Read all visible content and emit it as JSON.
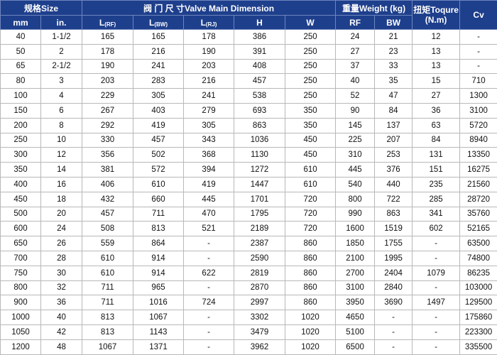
{
  "header": {
    "size": "规格Size",
    "dimension": "阀 门 尺 寸Valve Main Dimension",
    "weight": "重量Weight (kg)",
    "torque": "扭矩Toqure (N.m)",
    "cv": "Cv",
    "mm": "mm",
    "in": "in.",
    "l_rf": {
      "main": "L",
      "sub": "(RF)"
    },
    "l_bw": {
      "main": "L",
      "sub": "(BW)"
    },
    "l_rj": {
      "main": "L",
      "sub": "(RJ)"
    },
    "h": "H",
    "w": "W",
    "rf": "RF",
    "bw": "BW"
  },
  "colors": {
    "header_bg": "#1e3f8c",
    "header_text": "#ffffff"
  },
  "rows": [
    [
      "40",
      "1-1/2",
      "165",
      "165",
      "178",
      "386",
      "250",
      "24",
      "21",
      "12",
      "-"
    ],
    [
      "50",
      "2",
      "178",
      "216",
      "190",
      "391",
      "250",
      "27",
      "23",
      "13",
      "-"
    ],
    [
      "65",
      "2-1/2",
      "190",
      "241",
      "203",
      "408",
      "250",
      "37",
      "33",
      "13",
      "-"
    ],
    [
      "80",
      "3",
      "203",
      "283",
      "216",
      "457",
      "250",
      "40",
      "35",
      "15",
      "710"
    ],
    [
      "100",
      "4",
      "229",
      "305",
      "241",
      "538",
      "250",
      "52",
      "47",
      "27",
      "1300"
    ],
    [
      "150",
      "6",
      "267",
      "403",
      "279",
      "693",
      "350",
      "90",
      "84",
      "36",
      "3100"
    ],
    [
      "200",
      "8",
      "292",
      "419",
      "305",
      "863",
      "350",
      "145",
      "137",
      "63",
      "5720"
    ],
    [
      "250",
      "10",
      "330",
      "457",
      "343",
      "1036",
      "450",
      "225",
      "207",
      "84",
      "8940"
    ],
    [
      "300",
      "12",
      "356",
      "502",
      "368",
      "1130",
      "450",
      "310",
      "253",
      "131",
      "13350"
    ],
    [
      "350",
      "14",
      "381",
      "572",
      "394",
      "1272",
      "610",
      "445",
      "376",
      "151",
      "16275"
    ],
    [
      "400",
      "16",
      "406",
      "610",
      "419",
      "1447",
      "610",
      "540",
      "440",
      "235",
      "21560"
    ],
    [
      "450",
      "18",
      "432",
      "660",
      "445",
      "1701",
      "720",
      "800",
      "722",
      "285",
      "28720"
    ],
    [
      "500",
      "20",
      "457",
      "711",
      "470",
      "1795",
      "720",
      "990",
      "863",
      "341",
      "35760"
    ],
    [
      "600",
      "24",
      "508",
      "813",
      "521",
      "2189",
      "720",
      "1600",
      "1519",
      "602",
      "52165"
    ],
    [
      "650",
      "26",
      "559",
      "864",
      "-",
      "2387",
      "860",
      "1850",
      "1755",
      "-",
      "63500"
    ],
    [
      "700",
      "28",
      "610",
      "914",
      "-",
      "2590",
      "860",
      "2100",
      "1995",
      "-",
      "74800"
    ],
    [
      "750",
      "30",
      "610",
      "914",
      "622",
      "2819",
      "860",
      "2700",
      "2404",
      "1079",
      "86235"
    ],
    [
      "800",
      "32",
      "711",
      "965",
      "-",
      "2870",
      "860",
      "3100",
      "2840",
      "-",
      "103000"
    ],
    [
      "900",
      "36",
      "711",
      "1016",
      "724",
      "2997",
      "860",
      "3950",
      "3690",
      "1497",
      "129500"
    ],
    [
      "1000",
      "40",
      "813",
      "1067",
      "-",
      "3302",
      "1020",
      "4650",
      "-",
      "-",
      "175860"
    ],
    [
      "1050",
      "42",
      "813",
      "1143",
      "-",
      "3479",
      "1020",
      "5100",
      "-",
      "-",
      "223300"
    ],
    [
      "1200",
      "48",
      "1067",
      "1371",
      "-",
      "3962",
      "1020",
      "6500",
      "-",
      "-",
      "335500"
    ]
  ]
}
